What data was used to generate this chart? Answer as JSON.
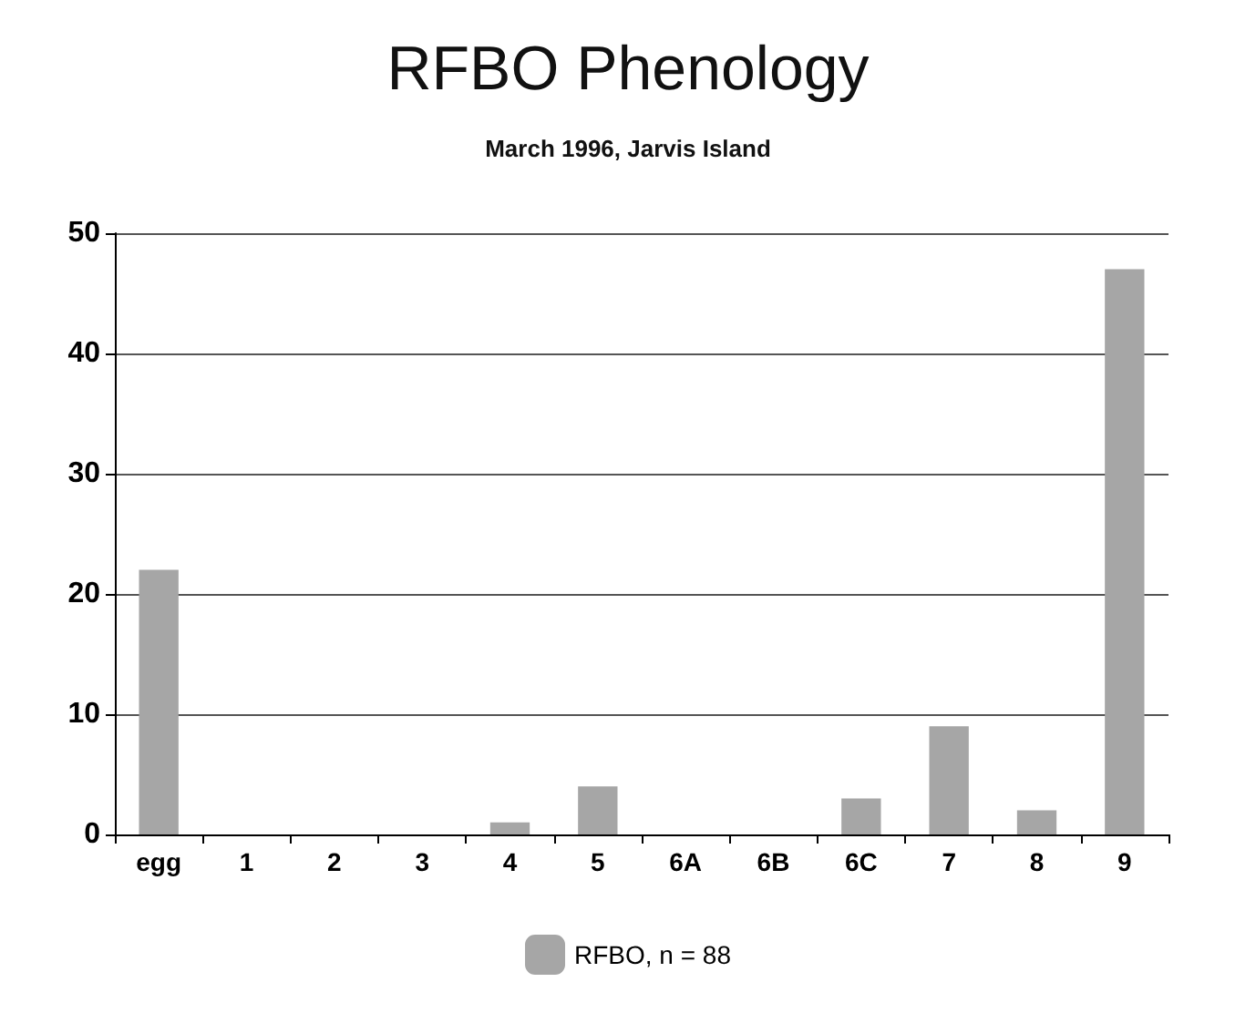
{
  "chart_data": {
    "type": "bar",
    "title": "RFBO Phenology",
    "subtitle": "March 1996, Jarvis Island",
    "categories": [
      "egg",
      "1",
      "2",
      "3",
      "4",
      "5",
      "6A",
      "6B",
      "6C",
      "7",
      "8",
      "9"
    ],
    "series": [
      {
        "name": "RFBO, n = 88",
        "color": "#a6a6a6",
        "values": [
          22,
          0,
          0,
          0,
          1,
          4,
          0,
          0,
          3,
          9,
          2,
          47
        ]
      }
    ],
    "ylim": [
      0,
      50
    ],
    "yticks": [
      0,
      10,
      20,
      30,
      40,
      50
    ],
    "grid": "y",
    "legend": "bottom"
  }
}
